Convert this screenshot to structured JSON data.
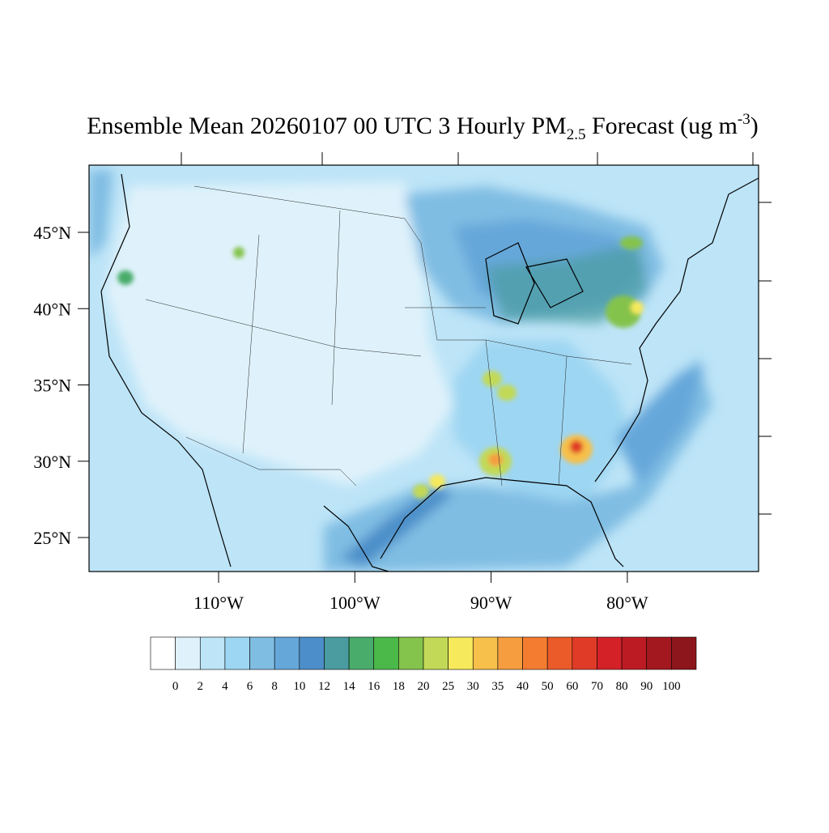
{
  "map": {
    "title": {
      "main": "Ensemble Mean 20260107 00 UTC 3 Hourly PM",
      "sub": "2.5",
      "mid": " Forecast (ug m",
      "sup": "-3",
      "end": ")"
    },
    "lat_ticks": [
      {
        "value": 45,
        "label": "45°N"
      },
      {
        "value": 40,
        "label": "40°N"
      },
      {
        "value": 35,
        "label": "35°N"
      },
      {
        "value": 30,
        "label": "30°N"
      },
      {
        "value": 25,
        "label": "25°N"
      }
    ],
    "lon_ticks": [
      {
        "value": -110,
        "label": "110°W"
      },
      {
        "value": -100,
        "label": "100°W"
      },
      {
        "value": -90,
        "label": "90°W"
      },
      {
        "value": -80,
        "label": "80°W"
      }
    ],
    "colorbar": {
      "levels": [
        0,
        2,
        4,
        6,
        8,
        10,
        12,
        14,
        16,
        18,
        20,
        25,
        30,
        35,
        40,
        50,
        60,
        70,
        80,
        90,
        100
      ],
      "colors": [
        "#ffffff",
        "#dff2fb",
        "#bde4f7",
        "#9dd6f2",
        "#80bde3",
        "#66a7da",
        "#4c8ec9",
        "#4a9ca0",
        "#4aac6b",
        "#4bb84a",
        "#84c34c",
        "#c2d957",
        "#f6e95b",
        "#f6c04a",
        "#f69d3f",
        "#f47c30",
        "#eb5b2a",
        "#e03b27",
        "#d42128",
        "#bc1b24",
        "#a3181f",
        "#8c161b"
      ]
    }
  }
}
